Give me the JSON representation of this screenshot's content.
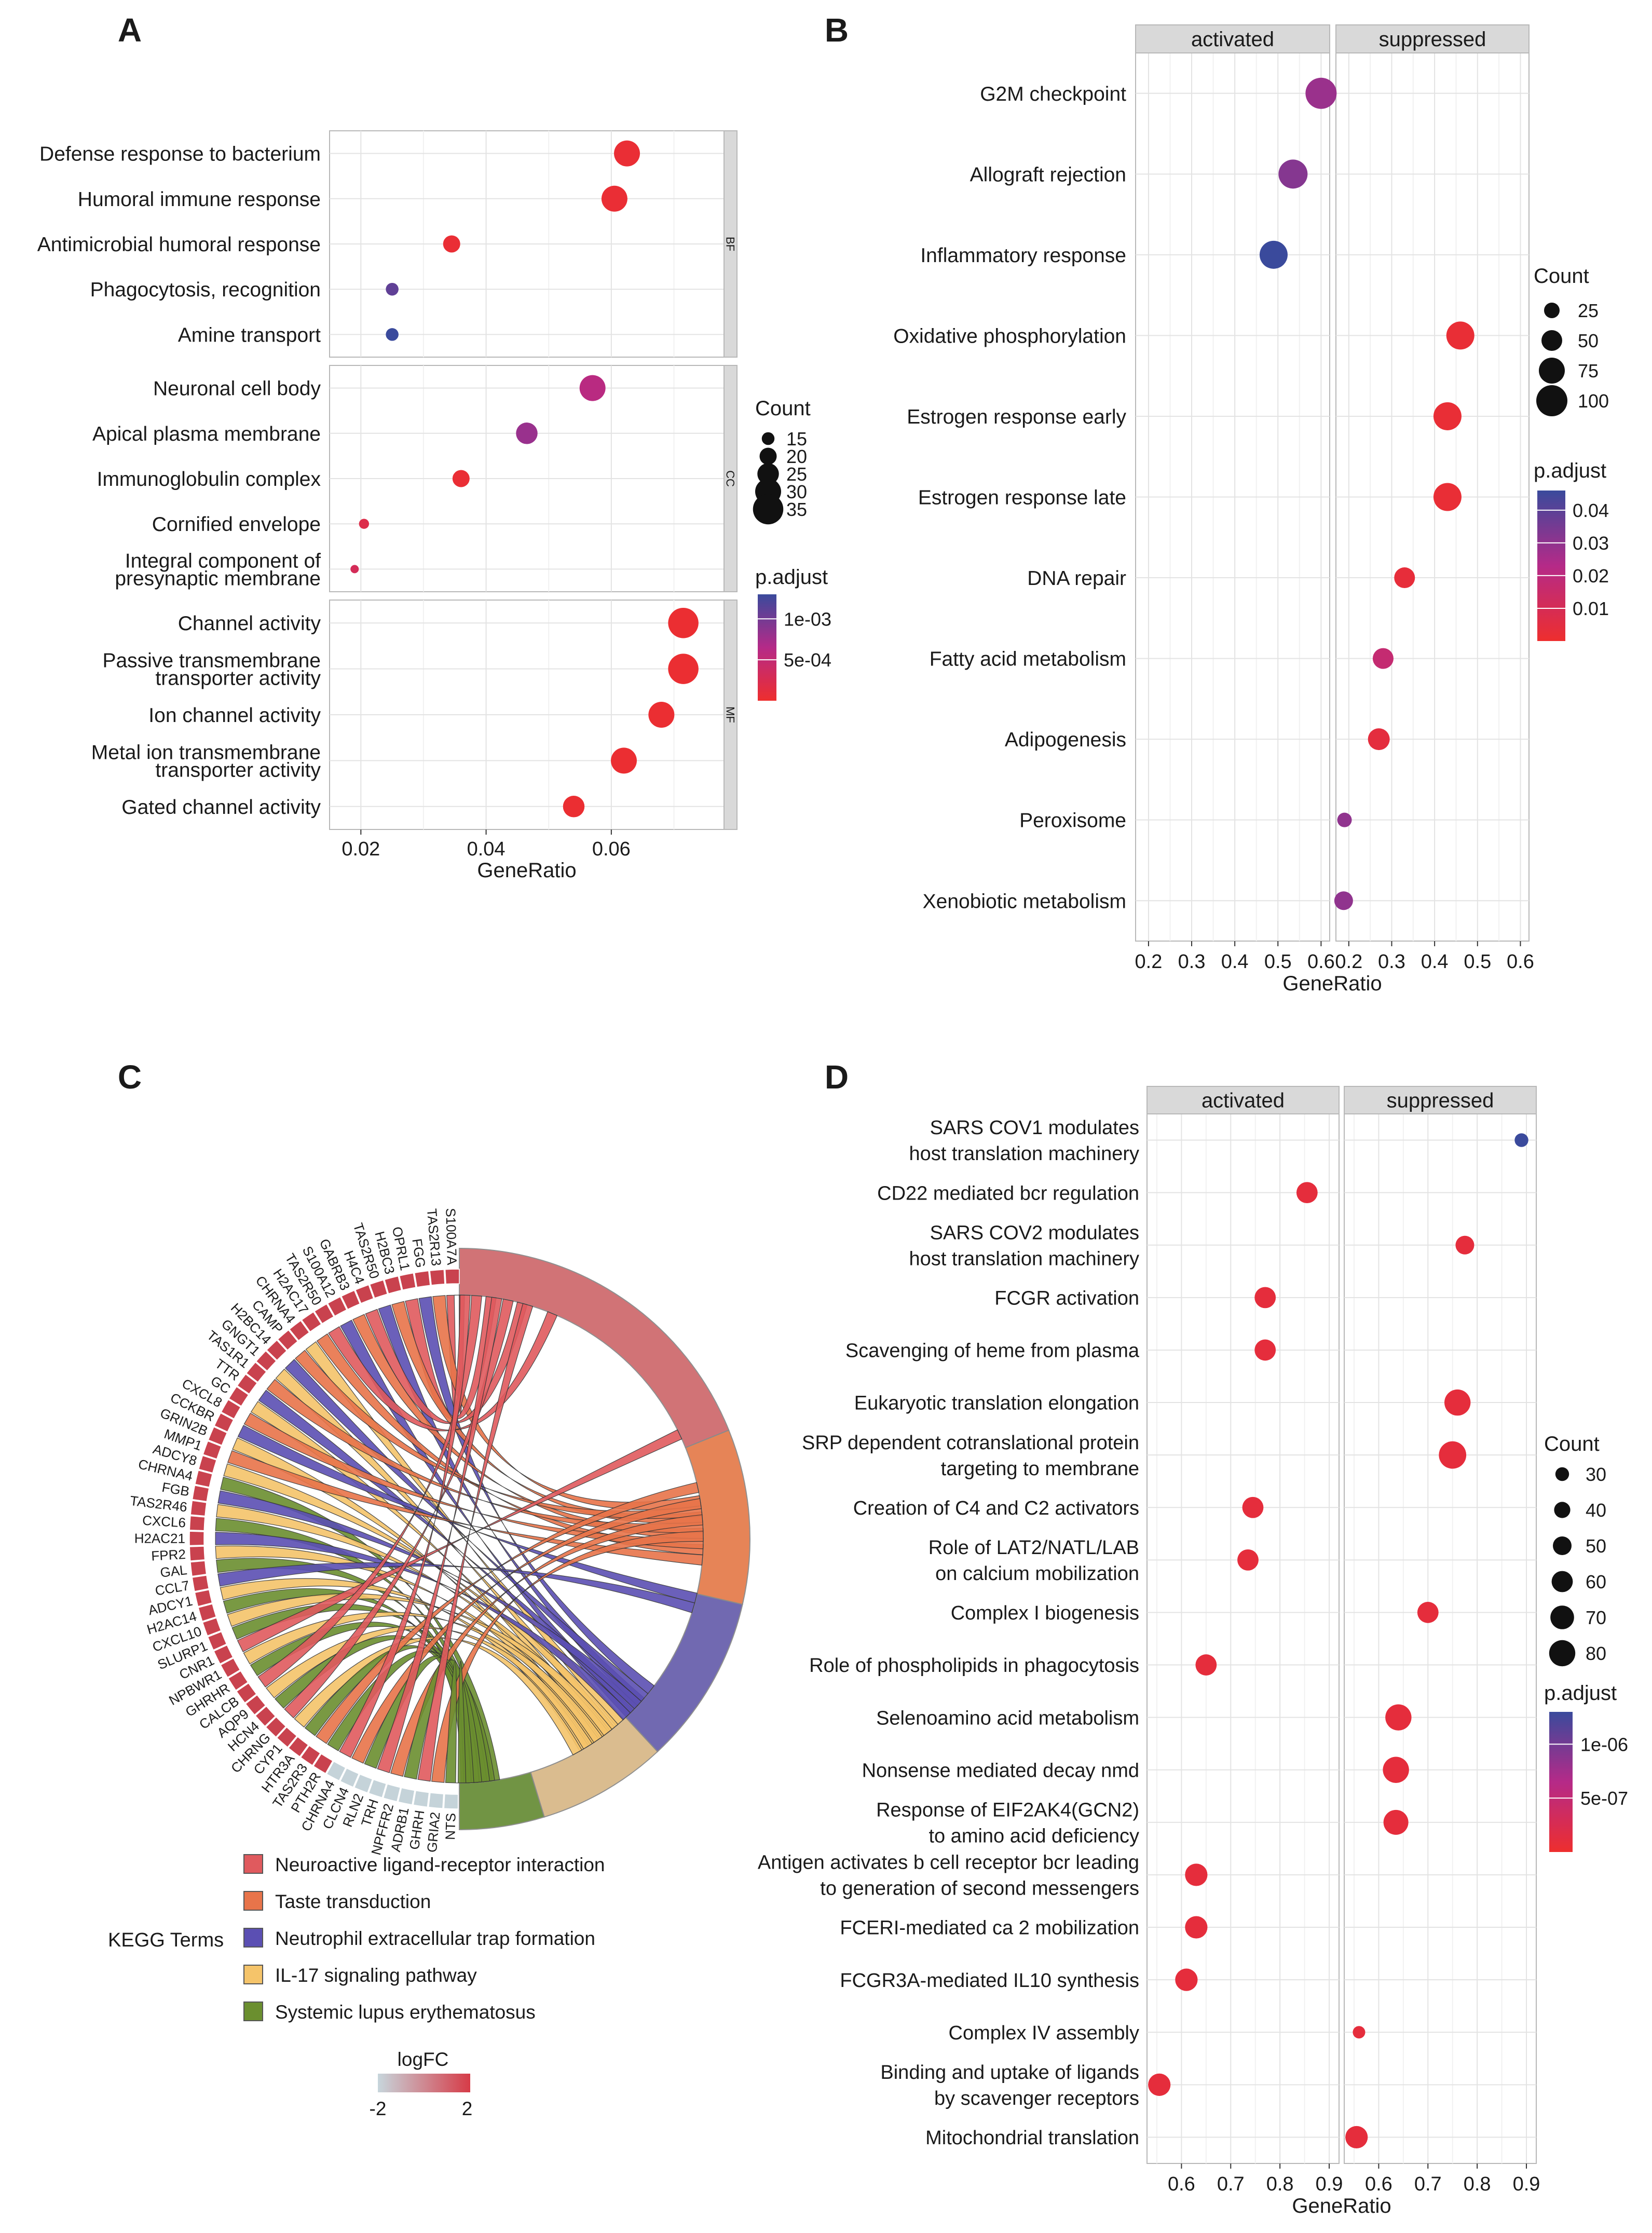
{
  "panel_labels": [
    "A",
    "B",
    "C",
    "D"
  ],
  "chart_data": [
    {
      "panel": "A",
      "type": "scatter",
      "xlabel": "GeneRatio",
      "xlim": [
        0.015,
        0.078
      ],
      "xticks": [
        0.02,
        0.04,
        0.06
      ],
      "xtick_labels": [
        "0.02",
        "0.04",
        "0.06"
      ],
      "groups": [
        {
          "name": "BF",
          "terms": [
            {
              "label": [
                "Defense response to bacterium"
              ],
              "x": 0.0625,
              "count": 30,
              "p": 5e-05
            },
            {
              "label": [
                "Humoral immune response"
              ],
              "x": 0.0605,
              "count": 30,
              "p": 5e-05
            },
            {
              "label": [
                "Antimicrobial humoral response"
              ],
              "x": 0.0345,
              "count": 20,
              "p": 5e-05
            },
            {
              "label": [
                "Phagocytosis, recognition"
              ],
              "x": 0.025,
              "count": 15,
              "p": 0.0011
            },
            {
              "label": [
                "Amine transport"
              ],
              "x": 0.025,
              "count": 15,
              "p": 0.0013
            }
          ]
        },
        {
          "name": "CC",
          "terms": [
            {
              "label": [
                "Neuronal cell body"
              ],
              "x": 0.057,
              "count": 30,
              "p": 0.0006
            },
            {
              "label": [
                "Apical plasma membrane"
              ],
              "x": 0.0465,
              "count": 25,
              "p": 0.0008
            },
            {
              "label": [
                "Immunoglobulin complex"
              ],
              "x": 0.036,
              "count": 20,
              "p": 5e-05
            },
            {
              "label": [
                "Cornified envelope"
              ],
              "x": 0.0205,
              "count": 12,
              "p": 0.0002
            },
            {
              "label": [
                "Integral component of",
                "presynaptic membrane"
              ],
              "x": 0.019,
              "count": 10,
              "p": 0.0003
            }
          ]
        },
        {
          "name": "MF",
          "terms": [
            {
              "label": [
                "Channel activity"
              ],
              "x": 0.0715,
              "count": 35,
              "p": 3e-05
            },
            {
              "label": [
                "Passive transmembrane",
                "transporter activity"
              ],
              "x": 0.0715,
              "count": 35,
              "p": 3e-05
            },
            {
              "label": [
                "Ion channel activity"
              ],
              "x": 0.068,
              "count": 30,
              "p": 3e-05
            },
            {
              "label": [
                "Metal ion transmembrane",
                "transporter activity"
              ],
              "x": 0.062,
              "count": 30,
              "p": 3e-05
            },
            {
              "label": [
                "Gated channel activity"
              ],
              "x": 0.054,
              "count": 25,
              "p": 3e-05
            }
          ]
        }
      ],
      "legend_count": {
        "title": "Count",
        "values": [
          15,
          20,
          25,
          30,
          35
        ]
      },
      "legend_color": {
        "title": "p.adjust",
        "min": 0,
        "max": 0.0013,
        "ticks": [
          0.001,
          0.0005
        ],
        "tick_labels": [
          "1e-03",
          "5e-04"
        ]
      }
    },
    {
      "panel": "B",
      "type": "scatter",
      "xlabel": "GeneRatio",
      "facets": [
        "activated",
        "suppressed"
      ],
      "xlim": [
        0.17,
        0.62
      ],
      "xticks": [
        0.2,
        0.3,
        0.4,
        0.5,
        0.6
      ],
      "xtick_labels": [
        "0.2",
        "0.3",
        "0.4",
        "0.5",
        "0.6"
      ],
      "terms": [
        {
          "label": [
            "G2M checkpoint"
          ],
          "facet": "activated",
          "x": 0.6,
          "count": 100,
          "p": 0.028
        },
        {
          "label": [
            "Allograft rejection"
          ],
          "facet": "activated",
          "x": 0.535,
          "count": 90,
          "p": 0.032
        },
        {
          "label": [
            "Inflammatory response"
          ],
          "facet": "activated",
          "x": 0.49,
          "count": 85,
          "p": 0.046
        },
        {
          "label": [
            "Oxidative phosphorylation"
          ],
          "facet": "suppressed",
          "x": 0.46,
          "count": 85,
          "p": 0.002
        },
        {
          "label": [
            "Estrogen response early"
          ],
          "facet": "suppressed",
          "x": 0.43,
          "count": 85,
          "p": 0.002
        },
        {
          "label": [
            "Estrogen response late"
          ],
          "facet": "suppressed",
          "x": 0.43,
          "count": 85,
          "p": 0.002
        },
        {
          "label": [
            "DNA repair"
          ],
          "facet": "suppressed",
          "x": 0.33,
          "count": 50,
          "p": 0.003
        },
        {
          "label": [
            "Fatty acid metabolism"
          ],
          "facet": "suppressed",
          "x": 0.28,
          "count": 50,
          "p": 0.017
        },
        {
          "label": [
            "Adipogenesis"
          ],
          "facet": "suppressed",
          "x": 0.27,
          "count": 55,
          "p": 0.004
        },
        {
          "label": [
            "Peroxisome"
          ],
          "facet": "suppressed",
          "x": 0.19,
          "count": 20,
          "p": 0.03
        },
        {
          "label": [
            "Xenobiotic metabolism"
          ],
          "facet": "suppressed",
          "x": 0.188,
          "count": 40,
          "p": 0.03
        }
      ],
      "legend_count": {
        "title": "Count",
        "values": [
          25,
          50,
          75,
          100
        ]
      },
      "legend_color": {
        "title": "p.adjust",
        "min": 0,
        "max": 0.046,
        "ticks": [
          0.04,
          0.03,
          0.02,
          0.01
        ],
        "tick_labels": [
          "0.04",
          "0.03",
          "0.02",
          "0.01"
        ]
      }
    },
    {
      "panel": "C",
      "type": "chord",
      "genes_right": [
        "S100A7A",
        "TAS2R13",
        "FGG",
        "OPRL1",
        "H2BC3",
        "TAS2R50",
        "H4C4"
      ],
      "genes_left": [
        "GABRB3",
        "S100A12",
        "TAS2R50",
        "H2AC17",
        "CHRNA4",
        "CAMP",
        "H2BC14",
        "GNGT1",
        "TAS1R1",
        "TTR",
        "GC",
        "CXCL8",
        "CCKBR",
        "GRIN2B",
        "MMP1",
        "ADCY8",
        "CHRNA4",
        "FGB",
        "TAS2R46",
        "CXCL6",
        "H2AC21",
        "FPR2",
        "GAL",
        "CCL7",
        "ADCY1",
        "H2AC14",
        "CXCL10",
        "SLURP1",
        "CNR1",
        "NPBWR1",
        "GHRHR",
        "CALCB",
        "AQP9",
        "HCN4",
        "CHRNG",
        "CYP1",
        "HTR3A",
        "TAS2R3",
        "PTH2R",
        "CHRNA4",
        "CLCN4",
        "RLN2",
        "TRH",
        "NPFFR2",
        "ADRB1",
        "GHRH",
        "GRIA2",
        "NTS"
      ],
      "legend_title": "KEGG Terms",
      "terms": [
        {
          "name": "Neuroactive ligand-receptor interaction",
          "color": "#e05a5e"
        },
        {
          "name": "Taste transduction",
          "color": "#e8744a"
        },
        {
          "name": "Neutrophil extracellular trap formation",
          "color": "#5b4fb3"
        },
        {
          "name": "IL-17 signaling pathway",
          "color": "#f5c46a"
        },
        {
          "name": "Systemic lupus erythematosus",
          "color": "#6b8f2f"
        }
      ],
      "logfc_title": "logFC",
      "logfc_labels": [
        "-2",
        "2"
      ]
    },
    {
      "panel": "D",
      "type": "scatter",
      "xlabel": "GeneRatio",
      "facets": [
        "activated",
        "suppressed"
      ],
      "xlim": [
        0.53,
        0.92
      ],
      "xticks": [
        0.6,
        0.7,
        0.8,
        0.9
      ],
      "xtick_labels": [
        "0.6",
        "0.7",
        "0.8",
        "0.9"
      ],
      "terms": [
        {
          "label": [
            "SARS COV1 modulates",
            "host translation machinery"
          ],
          "facet": "suppressed",
          "x": 0.89,
          "count": 30,
          "p": 1.3e-06
        },
        {
          "label": [
            "CD22 mediated bcr regulation"
          ],
          "facet": "activated",
          "x": 0.855,
          "count": 60,
          "p": 1e-07
        },
        {
          "label": [
            "SARS COV2 modulates",
            "host translation machinery"
          ],
          "facet": "suppressed",
          "x": 0.775,
          "count": 50,
          "p": 1e-07
        },
        {
          "label": [
            "FCGR activation"
          ],
          "facet": "activated",
          "x": 0.77,
          "count": 60,
          "p": 1e-07
        },
        {
          "label": [
            "Scavenging of heme from plasma"
          ],
          "facet": "activated",
          "x": 0.77,
          "count": 60,
          "p": 1e-07
        },
        {
          "label": [
            "Eukaryotic translation elongation"
          ],
          "facet": "suppressed",
          "x": 0.76,
          "count": 80,
          "p": 1e-07
        },
        {
          "label": [
            "SRP dependent cotranslational protein",
            "targeting to membrane"
          ],
          "facet": "suppressed",
          "x": 0.75,
          "count": 85,
          "p": 1e-07
        },
        {
          "label": [
            "Creation of C4 and C2 activators"
          ],
          "facet": "activated",
          "x": 0.745,
          "count": 60,
          "p": 1e-07
        },
        {
          "label": [
            "Role of LAT2/NATL/LAB",
            "on calcium mobilization"
          ],
          "facet": "activated",
          "x": 0.735,
          "count": 60,
          "p": 1e-07
        },
        {
          "label": [
            "Complex I biogenesis"
          ],
          "facet": "suppressed",
          "x": 0.7,
          "count": 60,
          "p": 1e-07
        },
        {
          "label": [
            "Role of phospholipids in phagocytosis"
          ],
          "facet": "activated",
          "x": 0.65,
          "count": 60,
          "p": 1e-07
        },
        {
          "label": [
            "Selenoamino acid metabolism"
          ],
          "facet": "suppressed",
          "x": 0.64,
          "count": 80,
          "p": 1e-07
        },
        {
          "label": [
            "Nonsense mediated decay nmd"
          ],
          "facet": "suppressed",
          "x": 0.635,
          "count": 80,
          "p": 1e-07
        },
        {
          "label": [
            "Response of EIF2AK4(GCN2)",
            "to amino acid deficiency"
          ],
          "facet": "suppressed",
          "x": 0.635,
          "count": 75,
          "p": 1e-07
        },
        {
          "label": [
            "Antigen activates b cell receptor bcr leading",
            "to generation of second messengers"
          ],
          "facet": "activated",
          "x": 0.63,
          "count": 65,
          "p": 1e-07
        },
        {
          "label": [
            "FCERI-mediated ca 2 mobilization"
          ],
          "facet": "activated",
          "x": 0.63,
          "count": 65,
          "p": 1e-07
        },
        {
          "label": [
            "FCGR3A-mediated IL10 synthesis"
          ],
          "facet": "activated",
          "x": 0.61,
          "count": 65,
          "p": 1e-07
        },
        {
          "label": [
            "Complex IV assembly"
          ],
          "facet": "suppressed",
          "x": 0.56,
          "count": 25,
          "p": 1e-07
        },
        {
          "label": [
            "Binding and uptake of ligands",
            "by scavenger receptors"
          ],
          "facet": "activated",
          "x": 0.555,
          "count": 65,
          "p": 1e-07
        },
        {
          "label": [
            "Mitochondrial translation"
          ],
          "facet": "suppressed",
          "x": 0.555,
          "count": 65,
          "p": 1e-07
        }
      ],
      "legend_count": {
        "title": "Count",
        "values": [
          30,
          40,
          50,
          60,
          70,
          80
        ]
      },
      "legend_color": {
        "title": "p.adjust",
        "min": 0,
        "max": 1.3e-06,
        "ticks": [
          1e-06,
          5e-07
        ],
        "tick_labels": [
          "1e-06",
          "5e-07"
        ]
      }
    }
  ]
}
